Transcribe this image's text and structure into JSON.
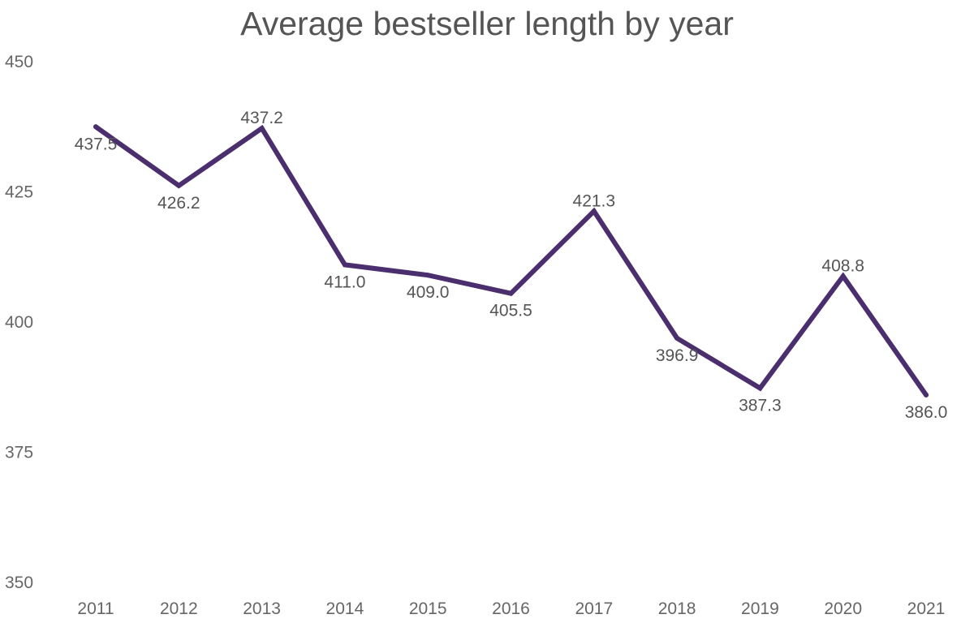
{
  "chart_data": {
    "type": "line",
    "title": "Average bestseller length by year",
    "xlabel": "",
    "ylabel": "",
    "categories": [
      "2011",
      "2012",
      "2013",
      "2014",
      "2015",
      "2016",
      "2017",
      "2018",
      "2019",
      "2020",
      "2021"
    ],
    "series": [
      {
        "values": [
          437.5,
          426.2,
          437.2,
          411.0,
          409.0,
          405.5,
          421.3,
          396.9,
          387.3,
          408.8,
          386.0
        ],
        "labels": [
          "437.5",
          "426.2",
          "437.2",
          "411.0",
          "409.0",
          "405.5",
          "421.3",
          "396.9",
          "387.3",
          "408.8",
          "386.0"
        ]
      }
    ],
    "y_ticks": [
      "450",
      "425",
      "400",
      "375",
      "350"
    ],
    "ylim": [
      350,
      450
    ],
    "grid": false,
    "legend": "none",
    "line_color": "#4b2e6e"
  }
}
